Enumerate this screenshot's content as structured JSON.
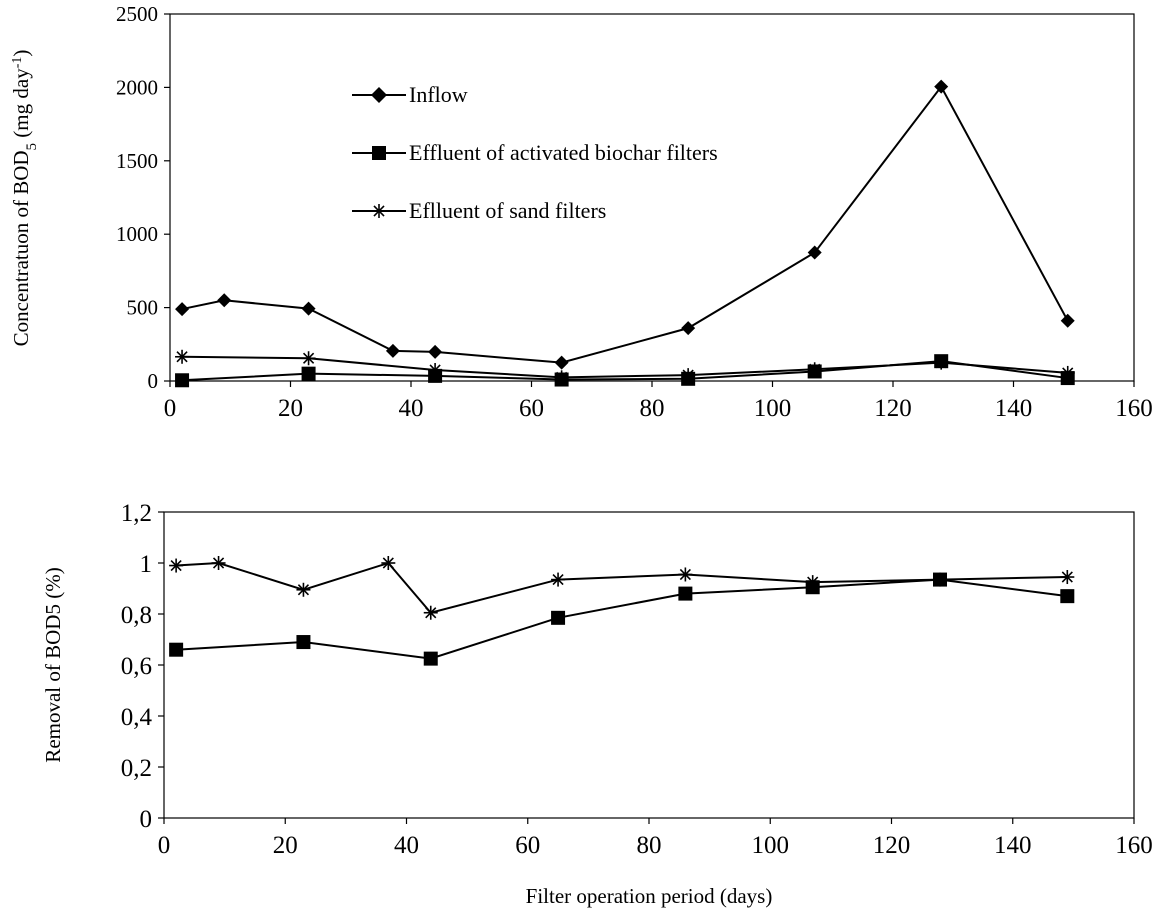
{
  "chart_data": [
    {
      "type": "line",
      "title": "",
      "xlabel": "",
      "ylabel_main": "Concentratuon of BOD",
      "ylabel_sub": "5",
      "ylabel_unit_open": " (mg day",
      "ylabel_unit_sup": "-1",
      "ylabel_unit_close": ")",
      "xlim": [
        0,
        160
      ],
      "ylim": [
        0,
        2500
      ],
      "xticks": [
        0,
        20,
        40,
        60,
        80,
        100,
        120,
        140,
        160
      ],
      "yticks": [
        0,
        500,
        1000,
        1500,
        2000,
        2500
      ],
      "legend_position": "upper-left-inside",
      "series": [
        {
          "name": "Inflow",
          "marker": "diamond",
          "x": [
            2,
            9,
            23,
            37,
            44,
            65,
            86,
            107,
            128,
            149
          ],
          "y": [
            490,
            550,
            493,
            205,
            198,
            125,
            360,
            875,
            2005,
            410
          ]
        },
        {
          "name": "Effluent of activated biochar filters",
          "marker": "square",
          "x": [
            2,
            23,
            44,
            65,
            86,
            107,
            128,
            149
          ],
          "y": [
            5,
            50,
            35,
            10,
            15,
            65,
            135,
            20
          ]
        },
        {
          "name": "Eflluent of sand filters",
          "marker": "asterisk",
          "x": [
            2,
            23,
            44,
            65,
            86,
            107,
            128,
            149
          ],
          "y": [
            165,
            155,
            75,
            25,
            40,
            80,
            125,
            55
          ]
        }
      ]
    },
    {
      "type": "line",
      "title": "",
      "xlabel": "Filter operation period (days)",
      "ylabel": "Removal of BOD5 (%)",
      "xlim": [
        0,
        160
      ],
      "ylim": [
        0,
        1.2
      ],
      "xticks": [
        0,
        20,
        40,
        60,
        80,
        100,
        120,
        140,
        160
      ],
      "yticks": [
        0,
        0.2,
        0.4,
        0.6,
        0.8,
        1,
        1.2
      ],
      "ytick_labels": [
        "0",
        "0,2",
        "0,4",
        "0,6",
        "0,8",
        "1",
        "1,2"
      ],
      "series": [
        {
          "marker": "asterisk",
          "x": [
            2,
            9,
            23,
            37,
            44,
            65,
            86,
            107,
            128,
            149
          ],
          "y": [
            0.99,
            1.0,
            0.895,
            1.0,
            0.805,
            0.935,
            0.955,
            0.925,
            0.935,
            0.945
          ]
        },
        {
          "marker": "square",
          "x": [
            2,
            23,
            44,
            65,
            86,
            107,
            128,
            149
          ],
          "y": [
            0.66,
            0.69,
            0.625,
            0.785,
            0.88,
            0.905,
            0.935,
            0.87
          ]
        }
      ]
    }
  ]
}
